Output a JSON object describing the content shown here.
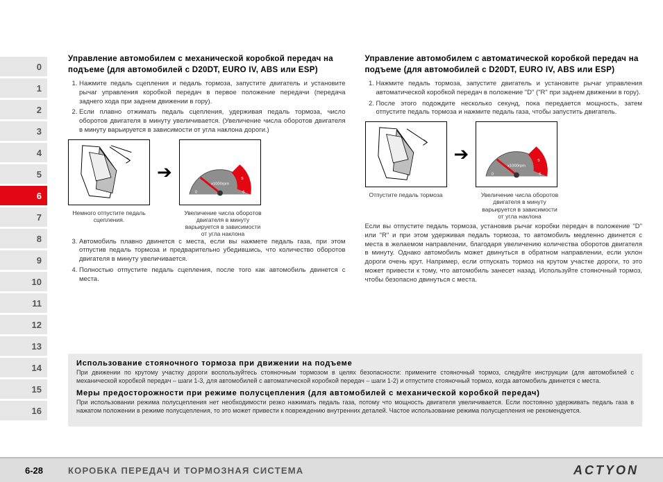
{
  "sidebar": {
    "tabs": [
      "0",
      "1",
      "2",
      "3",
      "4",
      "5",
      "6",
      "7",
      "8",
      "9",
      "10",
      "11",
      "12",
      "13",
      "14",
      "15",
      "16"
    ],
    "active_index": 6,
    "inactive_bg": "#e6e6e6",
    "active_bg": "#e30613"
  },
  "left": {
    "title": "Управление автомобилем с механической коробкой передач на подъеме (для автомобилей с D20DT, EURO IV, ABS или ESP)",
    "items_a": [
      "Нажмите педаль сцепления и педаль тормоза, запустите двигатель и установите рычаг управления коробкой передач в первое положение передачи (передача заднего хода при заднем движении в гору).",
      "Если плавно отжимать педаль сцепления, удерживая педаль тормоза, число оборотов двигателя в минуту увеличивается. (Увеличение числа оборотов двигателя в минуту варьируется в зависимости от угла наклона дороги.)"
    ],
    "cap1": "Немного отпустите педаль сцепления.",
    "cap2": "Увеличение числа оборотов двигателя в минуту варьируется в зависимости от угла наклона",
    "items_b": [
      "Автомобиль плавно двинется с места, если вы нажмете педаль газа, при этом отпустив педаль тормоза и предварительно убедившись, что количество оборотов двигателя в минуту увеличивается.",
      "Полностью отпустите педаль сцепления, после того как автомобиль двинется с места."
    ]
  },
  "right": {
    "title": "Управление автомобилем с автоматической коробкой передач на подъеме (для автомобилей с D20DT, EURO IV, ABS или ESP)",
    "items": [
      "Нажмите педаль тормоза, запустите двигатель и установите рычаг управления автоматической коробкой передач в положение \"D\" (\"R\" при заднем движении в гору).",
      "После этого подождите несколько секунд, пока передается мощность, затем отпустите педаль тормоза и нажмите педаль газа, чтобы запустить двигатель."
    ],
    "cap1": "Отпустите педаль тормоза",
    "cap2": "Увеличение числа оборотов двигателя в минуту варьируется в зависимости от угла наклона",
    "para": "Если вы отпустите педаль тормоза, установив рычаг коробки передач в положение \"D\" или \"R\" и при этом удерживая педаль тормоза, то автомобиль медленно двинется с места в желаемом направлении, благодаря увеличению количества оборотов двигателя в минуту. Однако автомобиль может двинуться в обратном направлении, если уклон дороги очень крут. Например, если отпускать тормоз на крутом участке дороги, то это может привести к тому, что автомобиль занесет назад. Используйте стояночный тормоз, чтобы безопасно двинуться с места."
  },
  "gray": {
    "t1": "Использование стояночного тормоза при движении на подъеме",
    "p1": "При движении по крутому участку дороги воспользуйтесь стояночным тормозом в целях безопасности: примените стояночный тормоз, следуйте инструкции (для автомобилей с механической коробкой передач – шаги 1-3, для автомобилей с автоматической коробкой передач – шаги 1-2) и отпустите стояночный тормоз, когда автомобиль двинется с места.",
    "t2": "Меры предосторожности при режиме полусцепления (для автомобилей с механической коробкой передач)",
    "p2": "При использовании режима полусцепления нет необходимости резко нажимать педаль газа, потому что мощность двигателя увеличивается. Если постоянно удерживать педаль газа в нажатом положении в режиме полусцепления, то это может привести к повреждению внутренних деталей. Частое использование режима полусцепления не рекомендуется."
  },
  "gauge": {
    "face_color": "#8e8e8e",
    "needle_color": "#e30613",
    "redzone_color": "#e30613",
    "label": "x1000rpm",
    "ticks": [
      "0",
      "1",
      "2",
      "3",
      "4",
      "5",
      "6"
    ]
  },
  "footer": {
    "page": "6-28",
    "title": "КОРОБКА ПЕРЕДАЧ И ТОРМОЗНАЯ СИСТЕМА",
    "brand": "ACTYON"
  }
}
